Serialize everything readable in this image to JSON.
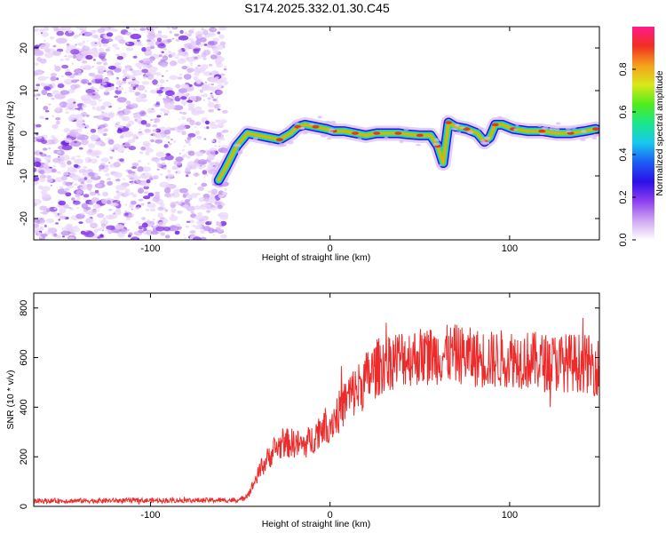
{
  "title": "S174.2025.332.01.30.C45",
  "colors": {
    "snr_line": "#ee2b2b",
    "speckle": [
      "#e9d6fb",
      "#d9b8f7",
      "#b98af0",
      "#8a3fe6",
      "#6a14e0"
    ],
    "colormap": [
      "#ffffff",
      "#cfa6f2",
      "#8d3ff0",
      "#2c10e8",
      "#1d5cf4",
      "#18c8ee",
      "#19e78c",
      "#4fec1c",
      "#d9e91a",
      "#f4a11c",
      "#f22f22",
      "#ff1a8c"
    ]
  },
  "chart_data": [
    {
      "type": "heatmap",
      "name": "spectrogram",
      "xlabel": "Height of straight line (km)",
      "ylabel": "Frequency (Hz)",
      "xlim": [
        -165,
        150
      ],
      "ylim": [
        -25,
        25
      ],
      "x_ticks": [
        -100,
        0,
        100
      ],
      "x_tick_labels": [
        "-100",
        "0",
        "100"
      ],
      "y_ticks": [
        -20,
        -10,
        0,
        10,
        20
      ],
      "y_tick_labels": [
        "-20",
        "-10",
        "0",
        "10",
        "20"
      ],
      "noise_region": [
        -165,
        -60
      ],
      "ridge": {
        "x": [
          -62,
          -58,
          -52,
          -46,
          -40,
          -34,
          -28,
          -22,
          -18,
          -14,
          -8,
          -2,
          2,
          8,
          14,
          20,
          26,
          32,
          38,
          44,
          50,
          56,
          60,
          63,
          66,
          70,
          76,
          82,
          86,
          89,
          92,
          96,
          102,
          110,
          118,
          126,
          134,
          142,
          148
        ],
        "freq": [
          -11,
          -8,
          -3,
          0,
          -0.5,
          -1,
          -1.5,
          0,
          1.5,
          2,
          1.5,
          1,
          0.5,
          0.5,
          0,
          -0.5,
          0,
          0,
          0,
          -0.3,
          -0.5,
          -0.5,
          -3,
          -7,
          2.5,
          1.5,
          1,
          0,
          -2,
          -1,
          2,
          2,
          1,
          0.5,
          0.5,
          0,
          0,
          0.5,
          1
        ]
      }
    },
    {
      "type": "colorbar",
      "name": "amplitude-scale",
      "label": "Normalized spectral amplitude",
      "range": [
        0,
        1
      ],
      "ticks": [
        0.0,
        0.2,
        0.4,
        0.6,
        0.8
      ],
      "tick_labels": [
        "0.0",
        "0.2",
        "0.4",
        "0.6",
        "0.8"
      ]
    },
    {
      "type": "line",
      "name": "snr",
      "xlabel": "Height of straight line (km)",
      "ylabel": "SNR (10 * v/v)",
      "xlim": [
        -165,
        150
      ],
      "ylim": [
        0,
        860
      ],
      "x_ticks": [
        -100,
        0,
        100
      ],
      "x_tick_labels": [
        "-100",
        "0",
        "100"
      ],
      "y_ticks": [
        0,
        200,
        400,
        600,
        800
      ],
      "y_tick_labels": [
        "0",
        "200",
        "400",
        "600",
        "800"
      ],
      "trend": {
        "x": [
          -165,
          -50,
          -45,
          -40,
          -35,
          -30,
          -25,
          -20,
          -15,
          -10,
          -5,
          0,
          5,
          10,
          15,
          20,
          25,
          30,
          40,
          50,
          60,
          70,
          80,
          90,
          100,
          110,
          120,
          130,
          140,
          150
        ],
        "y": [
          22,
          25,
          55,
          130,
          190,
          235,
          255,
          255,
          245,
          270,
          320,
          335,
          380,
          440,
          470,
          510,
          550,
          580,
          600,
          605,
          610,
          615,
          600,
          590,
          600,
          590,
          580,
          580,
          580,
          560
        ]
      },
      "noise_amplitude": [
        10,
        120
      ]
    }
  ]
}
